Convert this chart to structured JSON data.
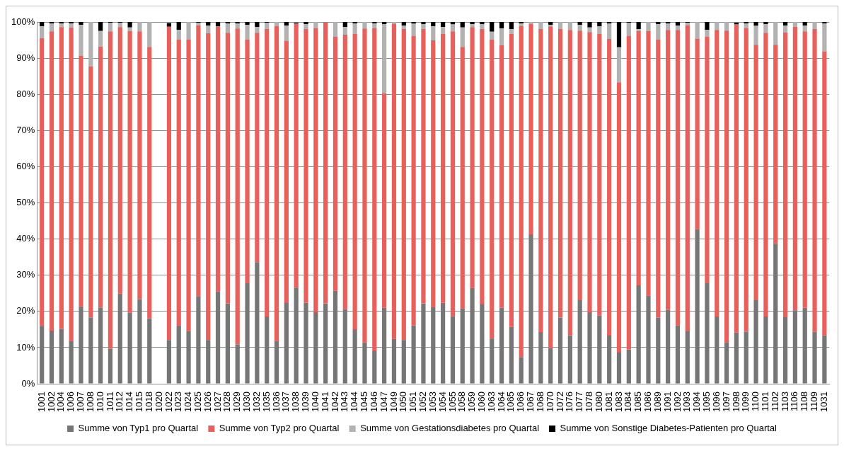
{
  "chart_data": {
    "type": "bar",
    "stacked": true,
    "grid": "y",
    "legend": "bottom",
    "categories": [
      "1001",
      "1002",
      "1004",
      "1006",
      "1007",
      "1008",
      "1010",
      "1011",
      "1012",
      "1014",
      "1015",
      "1018",
      "1020",
      "1022",
      "1023",
      "1024",
      "1025",
      "1026",
      "1027",
      "1028",
      "1029",
      "1030",
      "1032",
      "1035",
      "1036",
      "1037",
      "1038",
      "1039",
      "1040",
      "1041",
      "1042",
      "1043",
      "1044",
      "1045",
      "1046",
      "1047",
      "1049",
      "1050",
      "1051",
      "1052",
      "1053",
      "1054",
      "1055",
      "1058",
      "1059",
      "1060",
      "1063",
      "1064",
      "1065",
      "1066",
      "1067",
      "1068",
      "1070",
      "1072",
      "1076",
      "1077",
      "1078",
      "1080",
      "1081",
      "1083",
      "1084",
      "1085",
      "1086",
      "1089",
      "1091",
      "1092",
      "1093",
      "1094",
      "1095",
      "1096",
      "1097",
      "1098",
      "1099",
      "1100",
      "1101",
      "1102",
      "1103",
      "1106",
      "1108",
      "1109",
      "1031"
    ],
    "ylim": [
      0,
      100
    ],
    "yticks": [
      {
        "value": 0,
        "label": "0%"
      },
      {
        "value": 10,
        "label": "10%"
      },
      {
        "value": 20,
        "label": "20%"
      },
      {
        "value": 30,
        "label": "30%"
      },
      {
        "value": 40,
        "label": "40%"
      },
      {
        "value": 50,
        "label": "50%"
      },
      {
        "value": 60,
        "label": "60%"
      },
      {
        "value": 70,
        "label": "70%"
      },
      {
        "value": 80,
        "label": "80%"
      },
      {
        "value": 90,
        "label": "90%"
      },
      {
        "value": 100,
        "label": "100%"
      }
    ],
    "series": [
      {
        "name": "Summe von Typ1 pro Quartal",
        "color": "#767676",
        "values": [
          16,
          14.7,
          15.2,
          11.9,
          21.4,
          18.3,
          21.1,
          9.7,
          24.9,
          19.7,
          23.4,
          18.1,
          null,
          12.1,
          16.2,
          14.6,
          24.2,
          12.1,
          25.5,
          22.2,
          10.9,
          27.8,
          33.6,
          18.6,
          11.9,
          22.5,
          26.6,
          22.4,
          19.8,
          22.2,
          25.7,
          20.6,
          15.1,
          11.5,
          9.2,
          21,
          12.4,
          12.1,
          16.1,
          22.2,
          21.3,
          22.4,
          18.7,
          20.9,
          26.5,
          22.1,
          12.5,
          21,
          15.8,
          7.4,
          41.3,
          14.3,
          9.9,
          18.3,
          13.4,
          23.1,
          19.8,
          18.9,
          13.5,
          8.8,
          9.5,
          27.2,
          24.4,
          18.3,
          20.4,
          16.2,
          14.5,
          42.7,
          27.8,
          18.6,
          11.5,
          14.2,
          14.4,
          23.1,
          18.6,
          38.7,
          18.4,
          20.3,
          21,
          14.4,
          13.4
        ]
      },
      {
        "name": "Summe von Typ2 pro Quartal",
        "color": "#e8605c",
        "values": [
          79.5,
          82.7,
          83.4,
          86.6,
          69.3,
          69.4,
          72.1,
          87.7,
          73.7,
          77.8,
          74,
          75,
          null,
          86.6,
          78.9,
          80.5,
          74.8,
          84.8,
          73.3,
          74.8,
          87.3,
          67.4,
          63.4,
          79.5,
          87,
          72.3,
          73,
          75.7,
          78.5,
          77.6,
          70.3,
          75.9,
          81.6,
          86.7,
          89.1,
          59.3,
          87.1,
          86,
          80.1,
          75.9,
          73.6,
          74.3,
          78.7,
          72.2,
          72.1,
          76,
          82.6,
          72.6,
          80.9,
          91.5,
          58.2,
          83.8,
          88.9,
          79.8,
          84.4,
          74.5,
          77.4,
          77.8,
          81.8,
          74.5,
          86.7,
          70.3,
          73.1,
          76.8,
          77.4,
          81.6,
          84.6,
          52.7,
          68.2,
          79.2,
          86.1,
          85.1,
          83.9,
          70.6,
          78.4,
          55,
          78.7,
          78.4,
          76.4,
          83.7,
          78.5
        ]
      },
      {
        "name": "Summe von Gestationsdiabetes pro Quartal",
        "color": "#b2b2b2",
        "values": [
          3.3,
          2.2,
          1,
          1.1,
          8.5,
          12.3,
          4.3,
          2.4,
          1.2,
          1,
          2.6,
          6.9,
          null,
          null,
          2.7,
          4.9,
          0.8,
          2.1,
          0,
          2.6,
          1.4,
          4,
          1.6,
          1.7,
          1.1,
          4.2,
          null,
          1.3,
          1.7,
          null,
          4,
          2.1,
          2.9,
          1.8,
          1.3,
          19.1,
          0.5,
          0.9,
          3.3,
          1.3,
          3.9,
          1.9,
          1.9,
          5.4,
          0.8,
          1.3,
          2.2,
          4.6,
          1.3,
          0.7,
          0.5,
          1.9,
          0.4,
          1.9,
          2.2,
          1.6,
          1.3,
          2.1,
          4.3,
          9.7,
          3.6,
          0.5,
          2.5,
          4.3,
          1.8,
          1.2,
          0.7,
          4.6,
          1.8,
          2.2,
          2.4,
          null,
          1.3,
          5.2,
          2.4,
          6.3,
          1.9,
          1.3,
          1.6,
          1.9,
          7.7
        ]
      },
      {
        "name": "Summe von Sonstige Diabetes-Patienten pro Quartal",
        "color": "#000000",
        "values": [
          1.2,
          0.4,
          0.4,
          0.4,
          0.8,
          0,
          2.5,
          0.2,
          0.2,
          1.5,
          0,
          0,
          null,
          1,
          2.2,
          0,
          0.2,
          1,
          1.2,
          0.4,
          0.4,
          0.8,
          1.4,
          0.2,
          0,
          1,
          0.2,
          0.6,
          0,
          0,
          0,
          1.4,
          0.4,
          0,
          0.4,
          0.6,
          0,
          1,
          0.6,
          0.6,
          1.2,
          1.4,
          0.7,
          1.5,
          0.6,
          0.6,
          2.7,
          1.8,
          2,
          0.4,
          0,
          0,
          0.8,
          0,
          0,
          0.8,
          1.5,
          1.2,
          0.4,
          7,
          0.2,
          2,
          0,
          0.6,
          0.4,
          1,
          0.2,
          0,
          2.2,
          0,
          0,
          0.5,
          0.4,
          1.1,
          0.6,
          0,
          1,
          0,
          1,
          0,
          0.4
        ]
      }
    ]
  }
}
